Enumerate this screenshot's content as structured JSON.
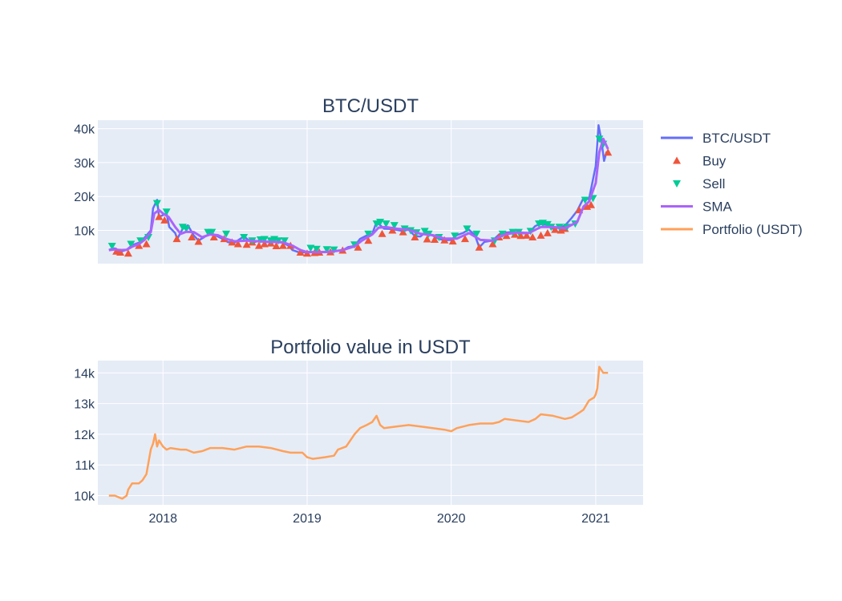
{
  "chart_data": [
    {
      "type": "line",
      "title": "BTC/USDT",
      "xlabel": "",
      "ylabel": "",
      "x_range": [
        "2017-07-20",
        "2021-05-01"
      ],
      "ylim": [
        200,
        42500
      ],
      "y_ticks": [
        10000,
        20000,
        30000,
        40000
      ],
      "y_tick_labels": [
        "10k",
        "20k",
        "30k",
        "40k"
      ],
      "grid": true,
      "series": [
        {
          "name": "BTC/USDT",
          "mode": "line",
          "color": "#636efa",
          "x": [
            "2017-08-17",
            "2017-09-01",
            "2017-09-15",
            "2017-10-01",
            "2017-10-15",
            "2017-11-01",
            "2017-11-15",
            "2017-12-01",
            "2017-12-07",
            "2017-12-17",
            "2017-12-22",
            "2018-01-01",
            "2018-01-10",
            "2018-01-17",
            "2018-02-01",
            "2018-02-06",
            "2018-02-20",
            "2018-03-05",
            "2018-03-20",
            "2018-04-01",
            "2018-04-15",
            "2018-05-01",
            "2018-05-15",
            "2018-06-01",
            "2018-06-15",
            "2018-07-01",
            "2018-07-25",
            "2018-08-15",
            "2018-09-01",
            "2018-09-15",
            "2018-10-01",
            "2018-10-15",
            "2018-11-01",
            "2018-11-15",
            "2018-11-25",
            "2018-12-15",
            "2019-01-01",
            "2019-01-15",
            "2019-02-01",
            "2019-02-15",
            "2019-03-01",
            "2019-03-15",
            "2019-04-01",
            "2019-04-15",
            "2019-05-01",
            "2019-05-15",
            "2019-06-01",
            "2019-06-15",
            "2019-06-26",
            "2019-07-15",
            "2019-08-01",
            "2019-08-15",
            "2019-09-01",
            "2019-09-15",
            "2019-10-01",
            "2019-10-15",
            "2019-10-26",
            "2019-11-15",
            "2019-12-01",
            "2019-12-15",
            "2020-01-01",
            "2020-01-15",
            "2020-02-01",
            "2020-02-14",
            "2020-03-01",
            "2020-03-12",
            "2020-03-25",
            "2020-04-15",
            "2020-05-01",
            "2020-05-15",
            "2020-06-01",
            "2020-06-15",
            "2020-07-01",
            "2020-07-15",
            "2020-08-01",
            "2020-08-15",
            "2020-09-01",
            "2020-09-15",
            "2020-10-01",
            "2020-10-15",
            "2020-11-01",
            "2020-11-15",
            "2020-12-01",
            "2020-12-15",
            "2021-01-01",
            "2021-01-08",
            "2021-01-15",
            "2021-01-22",
            "2021-01-28",
            "2021-02-01"
          ],
          "y": [
            4300,
            4700,
            3700,
            4300,
            5600,
            6400,
            7800,
            10000,
            16500,
            19000,
            14000,
            14500,
            15000,
            11000,
            9200,
            7500,
            10500,
            11500,
            8500,
            7000,
            8000,
            9200,
            8500,
            7500,
            6500,
            6400,
            8200,
            6300,
            7000,
            6500,
            6600,
            6500,
            6400,
            5500,
            4200,
            3400,
            3700,
            3600,
            3500,
            3600,
            3800,
            4000,
            4100,
            5100,
            5400,
            7500,
            8500,
            9000,
            12500,
            10500,
            10400,
            10200,
            9800,
            10300,
            8300,
            8200,
            9300,
            8500,
            7500,
            7100,
            7200,
            8600,
            9300,
            10300,
            8600,
            5000,
            6600,
            7000,
            8800,
            9300,
            9500,
            9400,
            9100,
            9200,
            11300,
            11900,
            11600,
            10500,
            10800,
            11400,
            13700,
            15800,
            19500,
            19200,
            29000,
            41000,
            36800,
            30500,
            33000,
            32500
          ]
        },
        {
          "name": "Buy",
          "mode": "markers",
          "marker": "triangle-up",
          "color": "#ef553b",
          "x": [
            "2017-09-05",
            "2017-09-15",
            "2017-10-05",
            "2017-11-01",
            "2017-11-20",
            "2017-12-22",
            "2018-01-05",
            "2018-02-05",
            "2018-03-15",
            "2018-04-01",
            "2018-05-10",
            "2018-06-05",
            "2018-06-25",
            "2018-07-10",
            "2018-08-01",
            "2018-08-15",
            "2018-09-01",
            "2018-09-15",
            "2018-10-01",
            "2018-10-15",
            "2018-11-01",
            "2018-11-20",
            "2018-12-15",
            "2019-01-01",
            "2019-01-20",
            "2019-02-01",
            "2019-03-01",
            "2019-04-01",
            "2019-05-10",
            "2019-06-05",
            "2019-07-10",
            "2019-08-05",
            "2019-09-01",
            "2019-10-01",
            "2019-11-01",
            "2019-11-20",
            "2019-12-15",
            "2020-01-05",
            "2020-02-05",
            "2020-03-12",
            "2020-04-15",
            "2020-05-01",
            "2020-05-20",
            "2020-06-10",
            "2020-06-25",
            "2020-07-10",
            "2020-07-25",
            "2020-08-15",
            "2020-09-01",
            "2020-09-20",
            "2020-10-05",
            "2020-10-15",
            "2020-11-20",
            "2020-12-10",
            "2020-12-20",
            "2021-02-01"
          ],
          "y": [
            3800,
            3500,
            3200,
            5500,
            6000,
            14000,
            13000,
            7500,
            8000,
            6700,
            8000,
            7500,
            6500,
            6000,
            5800,
            6500,
            5500,
            6000,
            6200,
            5400,
            5500,
            5500,
            3500,
            3200,
            3400,
            3500,
            3600,
            4100,
            5000,
            7000,
            9000,
            10000,
            9500,
            8000,
            7400,
            7300,
            7100,
            6800,
            7500,
            5000,
            6000,
            8000,
            8400,
            8800,
            8400,
            8500,
            8000,
            8500,
            9200,
            10200,
            10000,
            10500,
            16000,
            17000,
            17500,
            33000
          ]
        },
        {
          "name": "Sell",
          "mode": "markers",
          "marker": "triangle-down",
          "color": "#00cc96",
          "x": [
            "2017-08-25",
            "2017-10-12",
            "2017-11-05",
            "2017-11-25",
            "2017-12-17",
            "2018-01-10",
            "2018-02-20",
            "2018-03-01",
            "2018-04-25",
            "2018-05-05",
            "2018-06-10",
            "2018-07-25",
            "2018-08-15",
            "2018-09-05",
            "2018-09-15",
            "2018-10-01",
            "2018-10-10",
            "2018-10-20",
            "2018-11-05",
            "2019-01-10",
            "2019-01-25",
            "2019-02-20",
            "2019-03-10",
            "2019-05-01",
            "2019-06-05",
            "2019-06-26",
            "2019-07-05",
            "2019-07-20",
            "2019-08-10",
            "2019-09-05",
            "2019-09-20",
            "2019-10-05",
            "2019-10-26",
            "2019-11-05",
            "2019-12-01",
            "2020-01-10",
            "2020-02-10",
            "2020-03-05",
            "2020-04-20",
            "2020-05-10",
            "2020-06-05",
            "2020-06-20",
            "2020-07-20",
            "2020-08-10",
            "2020-08-20",
            "2020-09-01",
            "2020-09-10",
            "2020-10-01",
            "2020-10-20",
            "2020-11-10",
            "2020-12-05",
            "2020-12-25",
            "2021-01-10",
            "2021-01-20"
          ],
          "y": [
            5400,
            6000,
            7000,
            8000,
            18000,
            15500,
            11000,
            10500,
            9500,
            9500,
            9000,
            8000,
            7000,
            7300,
            7400,
            7000,
            7400,
            7000,
            7000,
            4800,
            4500,
            4400,
            4300,
            5800,
            9000,
            12000,
            12500,
            12000,
            11500,
            10500,
            10000,
            9400,
            9800,
            9000,
            8000,
            8400,
            10500,
            9000,
            7000,
            9000,
            9500,
            9500,
            9800,
            12000,
            12200,
            11800,
            11000,
            11000,
            11000,
            12000,
            19000,
            19500,
            37000,
            35500
          ]
        },
        {
          "name": "SMA",
          "mode": "line",
          "color": "#ab63fa",
          "x": [
            "2017-08-17",
            "2017-09-01",
            "2017-09-15",
            "2017-10-01",
            "2017-10-15",
            "2017-11-01",
            "2017-11-15",
            "2017-12-01",
            "2017-12-10",
            "2017-12-22",
            "2018-01-01",
            "2018-01-15",
            "2018-02-01",
            "2018-02-15",
            "2018-03-01",
            "2018-03-20",
            "2018-04-10",
            "2018-05-01",
            "2018-05-20",
            "2018-06-10",
            "2018-07-01",
            "2018-08-01",
            "2018-09-01",
            "2018-10-01",
            "2018-11-01",
            "2018-11-25",
            "2018-12-15",
            "2019-01-01",
            "2019-02-01",
            "2019-03-01",
            "2019-04-01",
            "2019-05-01",
            "2019-05-20",
            "2019-06-15",
            "2019-07-01",
            "2019-07-20",
            "2019-08-15",
            "2019-09-15",
            "2019-10-15",
            "2019-11-15",
            "2019-12-15",
            "2020-01-15",
            "2020-02-15",
            "2020-03-15",
            "2020-04-15",
            "2020-05-15",
            "2020-06-15",
            "2020-07-15",
            "2020-08-15",
            "2020-09-15",
            "2020-10-15",
            "2020-11-15",
            "2020-12-01",
            "2020-12-15",
            "2021-01-01",
            "2021-01-10",
            "2021-01-20",
            "2021-02-01"
          ],
          "y": [
            4200,
            4400,
            4200,
            4300,
            5200,
            6000,
            7200,
            9500,
            15000,
            16000,
            15000,
            14000,
            11000,
            9000,
            9600,
            9500,
            8000,
            8800,
            8600,
            7500,
            6800,
            7000,
            6800,
            6600,
            6500,
            5500,
            4200,
            3600,
            3600,
            3700,
            4200,
            5300,
            7000,
            8800,
            10800,
            11000,
            10500,
            10200,
            9000,
            8600,
            7600,
            7600,
            9200,
            7200,
            7000,
            8800,
            9400,
            9200,
            11000,
            11000,
            10600,
            12500,
            17000,
            18500,
            24000,
            33000,
            37000,
            34000
          ]
        },
        {
          "name": "Portfolio (USDT)",
          "mode": "line",
          "color": "#ffa15a"
        }
      ]
    },
    {
      "type": "line",
      "title": "Portfolio value in USDT",
      "xlabel": "",
      "ylabel": "",
      "x_range": [
        "2017-07-20",
        "2021-05-01"
      ],
      "x_ticks": [
        "2018-01-01",
        "2019-01-01",
        "2020-01-01",
        "2021-01-01"
      ],
      "x_tick_labels": [
        "2018",
        "2019",
        "2020",
        "2021"
      ],
      "ylim": [
        9700,
        14400
      ],
      "y_ticks": [
        10000,
        11000,
        12000,
        13000,
        14000
      ],
      "y_tick_labels": [
        "10k",
        "11k",
        "12k",
        "13k",
        "14k"
      ],
      "grid": true,
      "series": [
        {
          "name": "Portfolio (USDT)",
          "mode": "line",
          "color": "#ffa15a",
          "x": [
            "2017-08-17",
            "2017-09-01",
            "2017-09-10",
            "2017-09-20",
            "2017-10-01",
            "2017-10-05",
            "2017-10-15",
            "2017-11-01",
            "2017-11-10",
            "2017-11-20",
            "2017-12-01",
            "2017-12-07",
            "2017-12-12",
            "2017-12-17",
            "2017-12-22",
            "2018-01-01",
            "2018-01-10",
            "2018-01-20",
            "2018-02-15",
            "2018-03-01",
            "2018-03-20",
            "2018-04-10",
            "2018-05-01",
            "2018-06-01",
            "2018-07-01",
            "2018-08-01",
            "2018-09-01",
            "2018-10-01",
            "2018-11-01",
            "2018-11-20",
            "2018-12-20",
            "2019-01-01",
            "2019-01-15",
            "2019-02-15",
            "2019-03-10",
            "2019-03-20",
            "2019-04-10",
            "2019-05-01",
            "2019-05-15",
            "2019-06-01",
            "2019-06-15",
            "2019-06-26",
            "2019-07-05",
            "2019-07-15",
            "2019-08-15",
            "2019-09-15",
            "2019-10-15",
            "2019-11-15",
            "2019-12-15",
            "2020-01-01",
            "2020-01-15",
            "2020-02-15",
            "2020-03-15",
            "2020-04-15",
            "2020-05-01",
            "2020-05-15",
            "2020-06-15",
            "2020-07-15",
            "2020-08-01",
            "2020-08-15",
            "2020-09-15",
            "2020-10-15",
            "2020-11-01",
            "2020-11-20",
            "2020-12-01",
            "2020-12-15",
            "2020-12-28",
            "2021-01-01",
            "2021-01-05",
            "2021-01-10",
            "2021-01-20",
            "2021-02-01"
          ],
          "y": [
            10000,
            10000,
            9950,
            9900,
            10000,
            10200,
            10400,
            10400,
            10500,
            10700,
            11500,
            11700,
            12000,
            11600,
            11800,
            11600,
            11500,
            11550,
            11500,
            11500,
            11400,
            11450,
            11550,
            11550,
            11500,
            11600,
            11600,
            11550,
            11450,
            11400,
            11400,
            11250,
            11200,
            11250,
            11300,
            11500,
            11600,
            12000,
            12200,
            12300,
            12400,
            12600,
            12300,
            12200,
            12250,
            12300,
            12250,
            12200,
            12150,
            12100,
            12200,
            12300,
            12350,
            12350,
            12400,
            12500,
            12450,
            12400,
            12500,
            12650,
            12600,
            12500,
            12550,
            12700,
            12800,
            13100,
            13200,
            13300,
            13500,
            14200,
            14000,
            14000
          ]
        }
      ]
    }
  ],
  "legend": {
    "placement": "right",
    "items": [
      {
        "label": "BTC/USDT",
        "symbol": "line",
        "color": "#636efa"
      },
      {
        "label": "Buy",
        "symbol": "triangle-up",
        "color": "#ef553b"
      },
      {
        "label": "Sell",
        "symbol": "triangle-down",
        "color": "#00cc96"
      },
      {
        "label": "SMA",
        "symbol": "line",
        "color": "#ab63fa"
      },
      {
        "label": "Portfolio (USDT)",
        "symbol": "line",
        "color": "#ffa15a"
      }
    ]
  },
  "style": {
    "plot_bg": "#e5ecf6",
    "grid_color": "#ffffff",
    "text_color": "#2a3f5f"
  }
}
